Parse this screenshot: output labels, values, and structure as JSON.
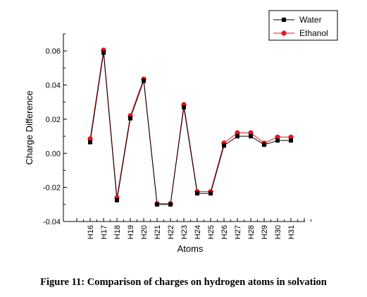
{
  "caption": "Figure 11: Comparison of charges on hydrogen atoms in solvation",
  "chart_data": {
    "type": "line",
    "title": "",
    "xlabel": "Atoms",
    "ylabel": "Charge Difference",
    "categories": [
      "H16",
      "H17",
      "H18",
      "H19",
      "H20",
      "H21",
      "H22",
      "H23",
      "H24",
      "H25",
      "H26",
      "H27",
      "H28",
      "H29",
      "H30",
      "H31"
    ],
    "ylim": [
      -0.04,
      0.07
    ],
    "yticks": [
      -0.04,
      -0.02,
      0.0,
      0.02,
      0.04,
      0.06
    ],
    "ytick_labels": [
      "-0.04",
      "-0.02",
      "0.00",
      "0.02",
      "0.04",
      "0.06"
    ],
    "grid": false,
    "legend_position": "top-right",
    "series": [
      {
        "name": "Water",
        "color": "#000000",
        "marker": "square",
        "values": [
          0.0065,
          0.059,
          -0.0275,
          0.0205,
          0.0425,
          -0.03,
          -0.03,
          0.027,
          -0.0235,
          -0.0235,
          0.0045,
          0.01,
          0.01,
          0.005,
          0.0075,
          0.0075
        ]
      },
      {
        "name": "Ethanol",
        "color": "#e8121a",
        "marker": "circle",
        "values": [
          0.0085,
          0.0605,
          -0.026,
          0.022,
          0.0435,
          -0.0295,
          -0.0295,
          0.0285,
          -0.0225,
          -0.0225,
          0.006,
          0.012,
          0.012,
          0.006,
          0.0095,
          0.0095
        ]
      }
    ]
  }
}
